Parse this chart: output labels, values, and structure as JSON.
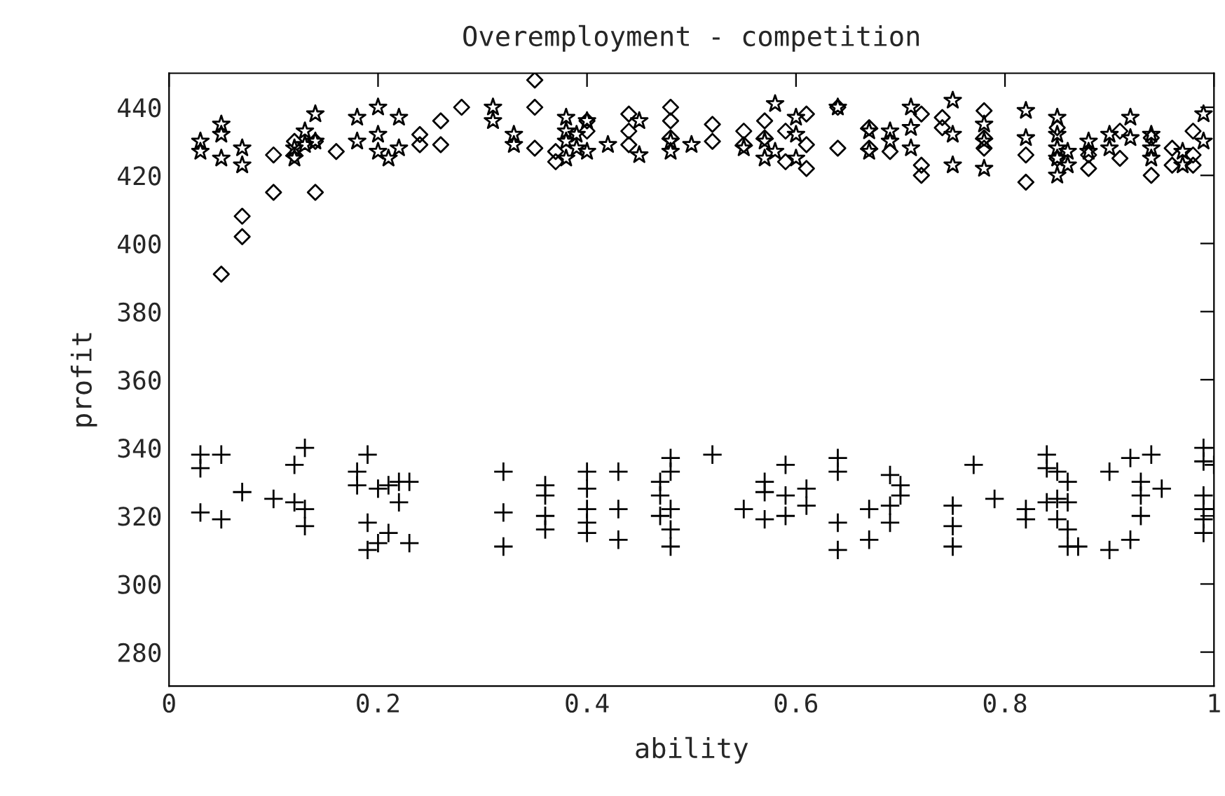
{
  "chart_data": {
    "type": "scatter",
    "title": "Overemployment - competition",
    "xlabel": "ability",
    "ylabel": "profit",
    "xlim": [
      0,
      1
    ],
    "xticks": [
      0,
      0.2,
      0.4,
      0.6,
      0.8,
      1
    ],
    "ylim": [
      270,
      450
    ],
    "yticks": [
      280,
      300,
      320,
      340,
      360,
      380,
      400,
      420,
      440
    ],
    "grid": false,
    "legend": false,
    "series": [
      {
        "color": "#000000",
        "marker": "star",
        "x": [
          0.03,
          0.03,
          0.05,
          0.05,
          0.05,
          0.07,
          0.07,
          0.12,
          0.12,
          0.13,
          0.13,
          0.14,
          0.14,
          0.18,
          0.18,
          0.2,
          0.2,
          0.2,
          0.21,
          0.22,
          0.22,
          0.31,
          0.31,
          0.33,
          0.33,
          0.38,
          0.38,
          0.38,
          0.38,
          0.39,
          0.39,
          0.4,
          0.4,
          0.42,
          0.45,
          0.45,
          0.48,
          0.48,
          0.5,
          0.55,
          0.57,
          0.57,
          0.58,
          0.58,
          0.6,
          0.6,
          0.6,
          0.64,
          0.67,
          0.67,
          0.69,
          0.69,
          0.71,
          0.71,
          0.71,
          0.75,
          0.75,
          0.75,
          0.78,
          0.78,
          0.78,
          0.82,
          0.82,
          0.85,
          0.85,
          0.85,
          0.85,
          0.85,
          0.86,
          0.86,
          0.88,
          0.88,
          0.9,
          0.9,
          0.92,
          0.92,
          0.94,
          0.94,
          0.94,
          0.97,
          0.97,
          0.99,
          0.99
        ],
        "values": [
          430,
          427,
          435,
          432,
          425,
          428,
          423,
          428,
          425,
          433,
          429,
          438,
          430,
          437,
          430,
          440,
          432,
          427,
          425,
          428,
          437,
          440,
          436,
          432,
          429,
          437,
          433,
          430,
          425,
          428,
          432,
          436,
          427,
          429,
          426,
          436,
          430,
          427,
          429,
          428,
          430,
          425,
          441,
          427,
          432,
          425,
          437,
          440,
          433,
          427,
          430,
          433,
          440,
          434,
          428,
          442,
          432,
          423,
          435,
          430,
          422,
          439,
          431,
          437,
          432,
          428,
          425,
          420,
          427,
          423,
          430,
          427,
          432,
          428,
          437,
          431,
          428,
          425,
          432,
          427,
          423,
          438,
          430
        ]
      },
      {
        "color": "#000000",
        "marker": "diamond",
        "x": [
          0.05,
          0.07,
          0.07,
          0.1,
          0.1,
          0.12,
          0.12,
          0.14,
          0.14,
          0.16,
          0.24,
          0.24,
          0.26,
          0.26,
          0.28,
          0.35,
          0.35,
          0.35,
          0.37,
          0.37,
          0.4,
          0.4,
          0.44,
          0.44,
          0.44,
          0.48,
          0.48,
          0.48,
          0.52,
          0.52,
          0.55,
          0.55,
          0.57,
          0.57,
          0.59,
          0.59,
          0.61,
          0.61,
          0.61,
          0.64,
          0.64,
          0.67,
          0.67,
          0.69,
          0.72,
          0.72,
          0.72,
          0.74,
          0.74,
          0.78,
          0.78,
          0.78,
          0.82,
          0.82,
          0.85,
          0.85,
          0.88,
          0.88,
          0.91,
          0.91,
          0.94,
          0.94,
          0.96,
          0.96,
          0.98,
          0.98,
          0.98
        ],
        "values": [
          391,
          402,
          408,
          415,
          426,
          430,
          426,
          415,
          430,
          427,
          432,
          429,
          436,
          429,
          440,
          448,
          440,
          428,
          427,
          424,
          433,
          436,
          438,
          433,
          429,
          440,
          436,
          431,
          435,
          430,
          433,
          429,
          436,
          431,
          433,
          424,
          438,
          429,
          422,
          440,
          428,
          434,
          428,
          427,
          438,
          423,
          420,
          437,
          434,
          439,
          431,
          428,
          426,
          418,
          434,
          425,
          422,
          426,
          433,
          425,
          420,
          431,
          423,
          428,
          426,
          433,
          423
        ]
      },
      {
        "color": "#000000",
        "marker": "cross",
        "x": [
          0.03,
          0.03,
          0.03,
          0.05,
          0.05,
          0.07,
          0.1,
          0.12,
          0.12,
          0.13,
          0.13,
          0.13,
          0.18,
          0.18,
          0.19,
          0.19,
          0.19,
          0.2,
          0.2,
          0.21,
          0.21,
          0.22,
          0.22,
          0.23,
          0.23,
          0.32,
          0.32,
          0.32,
          0.36,
          0.36,
          0.36,
          0.36,
          0.4,
          0.4,
          0.4,
          0.4,
          0.4,
          0.43,
          0.43,
          0.43,
          0.47,
          0.47,
          0.47,
          0.48,
          0.48,
          0.48,
          0.48,
          0.48,
          0.52,
          0.55,
          0.57,
          0.57,
          0.57,
          0.59,
          0.59,
          0.59,
          0.61,
          0.61,
          0.64,
          0.64,
          0.64,
          0.64,
          0.67,
          0.67,
          0.69,
          0.69,
          0.69,
          0.7,
          0.7,
          0.75,
          0.75,
          0.75,
          0.77,
          0.79,
          0.82,
          0.82,
          0.84,
          0.84,
          0.84,
          0.85,
          0.85,
          0.85,
          0.86,
          0.86,
          0.86,
          0.86,
          0.87,
          0.9,
          0.9,
          0.92,
          0.92,
          0.93,
          0.93,
          0.93,
          0.94,
          0.95,
          0.99,
          0.99,
          0.99,
          0.99,
          0.99,
          0.99,
          1.0,
          1.0
        ],
        "values": [
          338,
          334,
          321,
          338,
          319,
          327,
          325,
          335,
          324,
          340,
          322,
          317,
          333,
          329,
          338,
          318,
          310,
          328,
          312,
          329,
          315,
          330,
          324,
          330,
          312,
          333,
          321,
          311,
          329,
          326,
          320,
          316,
          333,
          328,
          322,
          318,
          315,
          333,
          322,
          313,
          330,
          326,
          320,
          337,
          333,
          322,
          316,
          311,
          338,
          322,
          330,
          327,
          319,
          335,
          326,
          320,
          328,
          323,
          337,
          333,
          318,
          310,
          322,
          313,
          332,
          323,
          318,
          329,
          326,
          323,
          317,
          311,
          335,
          325,
          322,
          319,
          338,
          334,
          324,
          333,
          325,
          319,
          330,
          324,
          316,
          311,
          311,
          333,
          310,
          337,
          313,
          330,
          326,
          320,
          338,
          328,
          340,
          336,
          326,
          322,
          319,
          315,
          335,
          322
        ]
      }
    ]
  }
}
